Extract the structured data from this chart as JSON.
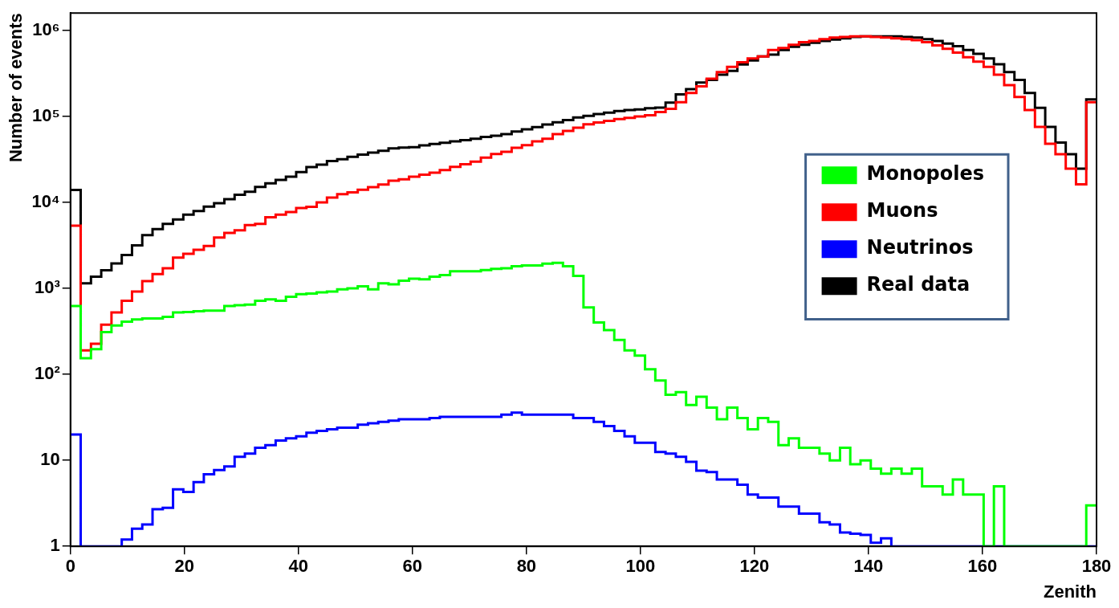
{
  "chart_data": {
    "type": "histogram",
    "xlabel": "Zenith",
    "ylabel": "Number of events",
    "log": "y",
    "legend": "right",
    "xlim": [
      0,
      180
    ],
    "xticks": [
      0,
      20,
      40,
      60,
      80,
      100,
      120,
      140,
      160,
      180
    ],
    "ylim": [
      1,
      1600000
    ],
    "yticks": [
      1,
      10,
      {
        "value": 100,
        "label": "10²"
      },
      {
        "value": 1000,
        "label": "10³"
      },
      {
        "value": 10000,
        "label": "10⁴"
      },
      {
        "value": 100000,
        "label": "10⁵"
      },
      {
        "value": 1000000,
        "label": "10⁶"
      }
    ],
    "bins": [
      0,
      1.8,
      3.6,
      5.4,
      7.2,
      9,
      10.8,
      12.6,
      14.4,
      16.2,
      18,
      19.8,
      21.6,
      23.4,
      25.2,
      27,
      28.8,
      30.6,
      32.4,
      34.2,
      36,
      37.8,
      39.6,
      41.4,
      43.2,
      45,
      46.8,
      48.6,
      50.4,
      52.2,
      54,
      55.8,
      57.6,
      59.4,
      61.2,
      63,
      64.8,
      66.6,
      68.4,
      70.2,
      72,
      73.8,
      75.6,
      77.4,
      79.2,
      81,
      82.8,
      84.6,
      86.4,
      88.2,
      90,
      91.8,
      93.6,
      95.4,
      97.2,
      99,
      100.8,
      102.6,
      104.4,
      106.2,
      108,
      109.8,
      111.6,
      113.4,
      115.2,
      117,
      118.8,
      120.6,
      122.4,
      124.2,
      126,
      127.8,
      129.6,
      131.4,
      133.2,
      135,
      136.8,
      138.6,
      140.4,
      142.2,
      144,
      145.8,
      147.6,
      149.4,
      151.2,
      153,
      154.8,
      156.6,
      158.4,
      160.2,
      162,
      163.8,
      165.6,
      167.4,
      169.2,
      171,
      172.8,
      174.6,
      176.4,
      178.2,
      180
    ],
    "series": [
      {
        "name": "Monopoles",
        "color": "#00ff00",
        "values": [
          625,
          154,
          197,
          311,
          370,
          411,
          435,
          447,
          447,
          466,
          525,
          532,
          543,
          551,
          551,
          625,
          638,
          647,
          720,
          745,
          720,
          800,
          859,
          871,
          902,
          921,
          975,
          1000,
          1058,
          975,
          1150,
          1116,
          1230,
          1300,
          1280,
          1370,
          1430,
          1580,
          1580,
          1580,
          1640,
          1690,
          1720,
          1810,
          1850,
          1850,
          1940,
          1980,
          1810,
          1400,
          603,
          402,
          328,
          252,
          190,
          165,
          115,
          85,
          58,
          62,
          44,
          55,
          41,
          30,
          41,
          31,
          23,
          31,
          28,
          15,
          18,
          14,
          14,
          12,
          10,
          14,
          9,
          10,
          8,
          7,
          8,
          7,
          8,
          5,
          5,
          4,
          6,
          4,
          4,
          1,
          5,
          1,
          1,
          1,
          1,
          1,
          1,
          1,
          1,
          3
        ]
      },
      {
        "name": "Muons",
        "color": "#ff0000",
        "values": [
          5370,
          190,
          227,
          378,
          525,
          720,
          918,
          1220,
          1470,
          1720,
          2280,
          2530,
          2810,
          3120,
          3900,
          4430,
          4750,
          5460,
          5650,
          6740,
          7230,
          7760,
          8620,
          8920,
          10000,
          11400,
          12500,
          13100,
          14100,
          15100,
          16200,
          17900,
          18600,
          20000,
          21000,
          22200,
          23800,
          25900,
          27800,
          29800,
          33300,
          36700,
          38900,
          43200,
          46300,
          51400,
          55200,
          62500,
          68000,
          74000,
          81100,
          85100,
          88800,
          93200,
          96500,
          100000,
          103500,
          112700,
          123000,
          147000,
          188000,
          224000,
          276000,
          329000,
          378000,
          427000,
          473000,
          500000,
          594000,
          628000,
          682000,
          731000,
          758000,
          796000,
          831000,
          843000,
          855000,
          855000,
          843000,
          831000,
          813000,
          796000,
          774000,
          731000,
          672000,
          615000,
          554000,
          490000,
          435000,
          378000,
          307000,
          232000,
          169000,
          119000,
          75900,
          48200,
          36400,
          24800,
          16300,
          147000
        ]
      },
      {
        "name": "Neutrinos",
        "color": "#0000ff",
        "values": [
          20,
          1,
          1,
          1,
          1,
          1.2,
          1.6,
          1.8,
          2.7,
          2.8,
          4.6,
          4.3,
          5.6,
          6.9,
          7.7,
          8.5,
          11,
          12,
          14,
          15,
          17,
          18,
          19,
          21,
          22,
          23,
          24,
          24,
          26,
          27,
          28,
          29,
          30,
          30,
          30,
          31,
          32,
          32,
          32,
          32,
          32,
          32,
          34,
          36,
          34,
          34,
          34,
          34,
          34,
          31,
          31,
          28,
          25,
          22,
          19,
          16,
          16,
          12.5,
          12,
          11,
          9.6,
          7.6,
          7.3,
          6,
          6,
          5.2,
          4,
          3.7,
          3.7,
          2.9,
          2.9,
          2.4,
          2.4,
          1.9,
          1.8,
          1.45,
          1.4,
          1.36,
          1.1,
          1.24,
          1,
          1,
          1,
          1,
          1,
          1,
          1,
          1,
          1,
          1,
          1,
          1,
          1,
          1,
          1,
          1,
          1,
          1,
          1,
          1
        ]
      },
      {
        "name": "Real data",
        "color": "#000000",
        "values": [
          14000,
          1150,
          1370,
          1630,
          1950,
          2450,
          3170,
          4170,
          4900,
          5640,
          6340,
          7230,
          7960,
          8930,
          9830,
          10900,
          12300,
          13300,
          15200,
          16700,
          18300,
          20000,
          22600,
          25800,
          27500,
          30300,
          31800,
          34000,
          36000,
          38000,
          40000,
          42500,
          43600,
          44000,
          46200,
          47900,
          49500,
          51300,
          53200,
          55000,
          57800,
          59800,
          62400,
          67000,
          70800,
          75400,
          80900,
          85500,
          91000,
          97700,
          102000,
          107000,
          111000,
          116000,
          119000,
          121000,
          125000,
          127000,
          145000,
          181000,
          208000,
          248000,
          267000,
          307000,
          339000,
          404000,
          449000,
          500000,
          525000,
          594000,
          646000,
          682000,
          721000,
          758000,
          785000,
          813000,
          843000,
          855000,
          855000,
          855000,
          855000,
          843000,
          831000,
          796000,
          758000,
          706000,
          659000,
          594000,
          535000,
          473000,
          406000,
          329000,
          267000,
          188000,
          126000,
          75900,
          49900,
          36400,
          24800,
          158000
        ]
      }
    ]
  }
}
